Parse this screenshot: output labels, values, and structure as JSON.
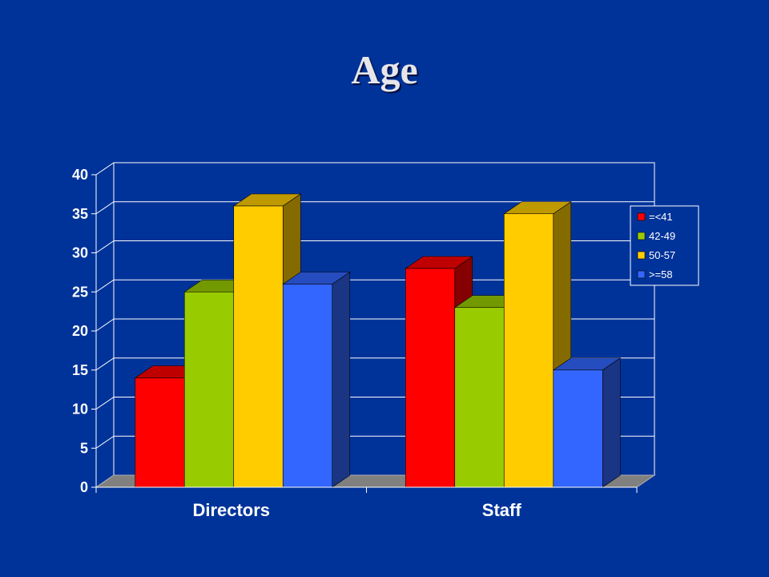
{
  "chart_data": {
    "type": "bar",
    "title": "Age",
    "categories": [
      "Directors",
      "Staff"
    ],
    "series": [
      {
        "name": "=<41",
        "color": "#ff0000",
        "values": [
          14,
          28
        ]
      },
      {
        "name": "42-49",
        "color": "#99cc00",
        "values": [
          25,
          23
        ]
      },
      {
        "name": "50-57",
        "color": "#ffcc00",
        "values": [
          36,
          35
        ]
      },
      {
        "name": ">=58",
        "color": "#3366ff",
        "values": [
          26,
          15
        ]
      }
    ],
    "yticks": [
      "0",
      "5",
      "10",
      "15",
      "20",
      "25",
      "30",
      "35",
      "40"
    ],
    "ylim": [
      0,
      40
    ],
    "grid": true,
    "legend": "right",
    "style": "3d-clustered-column"
  }
}
